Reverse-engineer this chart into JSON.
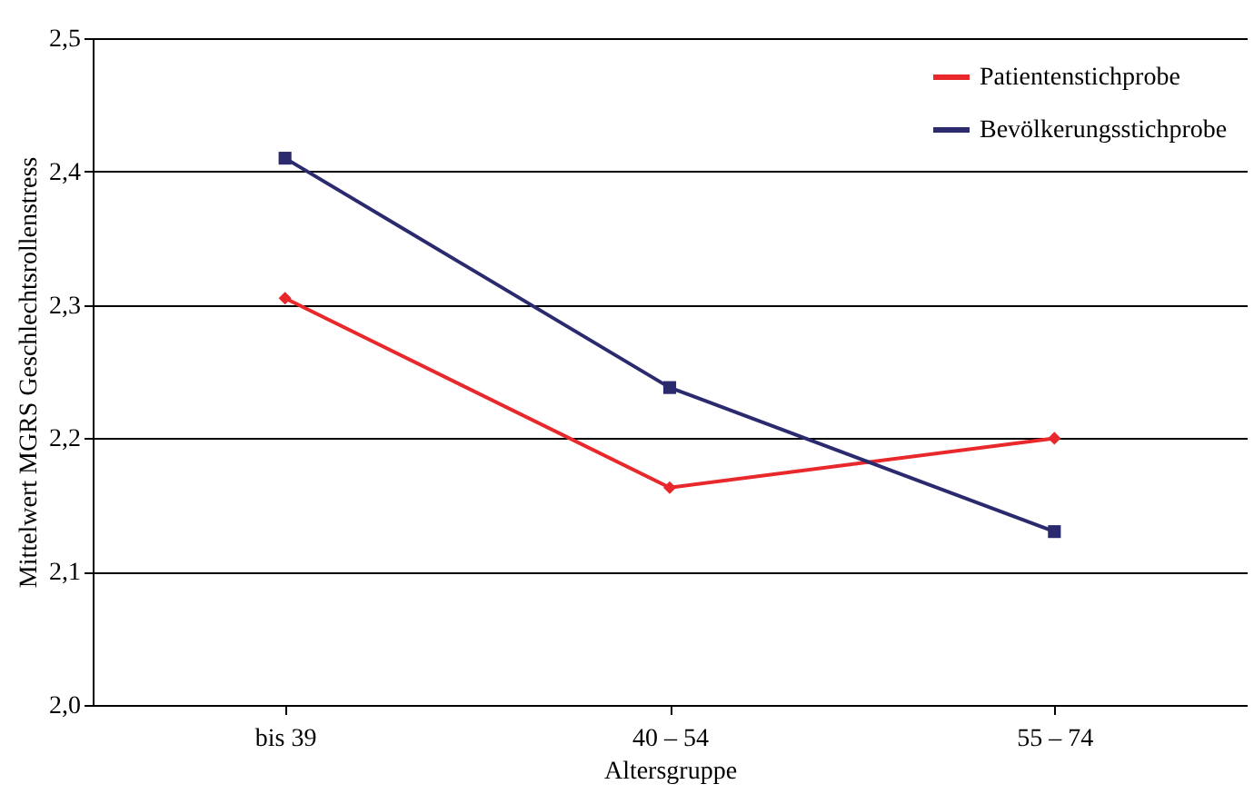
{
  "chart_data": {
    "type": "line",
    "xlabel": "Altersgruppe",
    "ylabel": "Mittelwert MGRS Geschlechtsrollenstress",
    "categories": [
      "bis 39",
      "40 – 54",
      "55 – 74"
    ],
    "series": [
      {
        "name": "Patientenstichprobe",
        "color": "#e8282a",
        "marker": "diamond",
        "values": [
          2.305,
          2.163,
          2.2
        ]
      },
      {
        "name": "Bevölkerungsstichprobe",
        "color": "#2b2a6e",
        "marker": "square",
        "values": [
          2.41,
          2.238,
          2.13
        ]
      }
    ],
    "ylim": [
      2.0,
      2.5
    ],
    "yticks": [
      {
        "value": 2.0,
        "label": "2,0"
      },
      {
        "value": 2.1,
        "label": "2,1"
      },
      {
        "value": 2.2,
        "label": "2,2"
      },
      {
        "value": 2.3,
        "label": "2,3"
      },
      {
        "value": 2.4,
        "label": "2,4"
      },
      {
        "value": 2.5,
        "label": "2,5"
      }
    ],
    "grid": "y",
    "legend": "top right",
    "line_style": "solid"
  }
}
